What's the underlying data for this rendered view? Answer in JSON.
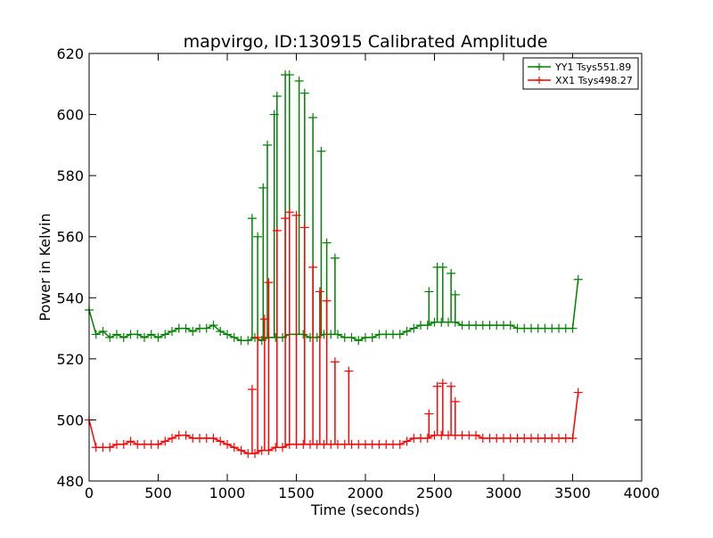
{
  "chart_data": {
    "type": "line",
    "title": "mapvirgo, ID:130915 Calibrated Amplitude",
    "xlabel": "Time (seconds)",
    "ylabel": "Power in Kelvin",
    "xlim": [
      0,
      4000
    ],
    "ylim": [
      480,
      620
    ],
    "xticks": [
      0,
      500,
      1000,
      1500,
      2000,
      2500,
      3000,
      3500,
      4000
    ],
    "yticks": [
      480,
      500,
      520,
      540,
      560,
      580,
      600,
      620
    ],
    "grid": false,
    "legend_position": "top-right",
    "series": [
      {
        "name": "YY1 Tsys551.89",
        "color": "#008000",
        "marker": "+",
        "x": [
          0,
          50,
          100,
          150,
          200,
          250,
          300,
          350,
          400,
          450,
          500,
          550,
          600,
          650,
          700,
          750,
          800,
          850,
          900,
          950,
          1000,
          1050,
          1100,
          1150,
          1200,
          1250,
          1300,
          1350,
          1400,
          1450,
          1500,
          1550,
          1600,
          1650,
          1700,
          1750,
          1800,
          1850,
          1900,
          1950,
          2000,
          2050,
          2100,
          2150,
          2200,
          2250,
          2300,
          2350,
          2400,
          2450,
          2500,
          2550,
          2600,
          2650,
          2700,
          2750,
          2800,
          2850,
          2900,
          2950,
          3000,
          3050,
          3100,
          3150,
          3200,
          3250,
          3300,
          3350,
          3400,
          3450,
          3500,
          3540
        ],
        "y": [
          536,
          528,
          529,
          527,
          528,
          527,
          528,
          528,
          527,
          528,
          527,
          528,
          529,
          530,
          530,
          529,
          530,
          530,
          531,
          529,
          528,
          527,
          526,
          526,
          527,
          526,
          527,
          527,
          527,
          528,
          528,
          528,
          527,
          527,
          528,
          528,
          528,
          527,
          527,
          526,
          527,
          527,
          528,
          528,
          528,
          528,
          529,
          530,
          531,
          531,
          532,
          532,
          532,
          532,
          531,
          531,
          531,
          531,
          531,
          531,
          531,
          531,
          530,
          530,
          530,
          530,
          530,
          530,
          530,
          530,
          530,
          546
        ],
        "spikes": [
          [
            1180,
            566
          ],
          [
            1220,
            560
          ],
          [
            1260,
            576
          ],
          [
            1290,
            590
          ],
          [
            1340,
            600
          ],
          [
            1360,
            606
          ],
          [
            1420,
            613
          ],
          [
            1450,
            613
          ],
          [
            1520,
            611
          ],
          [
            1560,
            607
          ],
          [
            1620,
            599
          ],
          [
            1680,
            588
          ],
          [
            1720,
            558
          ],
          [
            1780,
            553
          ],
          [
            2460,
            542
          ],
          [
            2520,
            550
          ],
          [
            2560,
            550
          ],
          [
            2620,
            548
          ],
          [
            2650,
            541
          ]
        ]
      },
      {
        "name": "XX1 Tsys498.27",
        "color": "#ff0000",
        "marker": "+",
        "x": [
          0,
          50,
          100,
          150,
          200,
          250,
          300,
          350,
          400,
          450,
          500,
          550,
          600,
          650,
          700,
          750,
          800,
          850,
          900,
          950,
          1000,
          1050,
          1100,
          1150,
          1200,
          1250,
          1300,
          1350,
          1400,
          1450,
          1500,
          1550,
          1600,
          1650,
          1700,
          1750,
          1800,
          1850,
          1900,
          1950,
          2000,
          2050,
          2100,
          2150,
          2200,
          2250,
          2300,
          2350,
          2400,
          2450,
          2500,
          2550,
          2600,
          2650,
          2700,
          2750,
          2800,
          2850,
          2900,
          2950,
          3000,
          3050,
          3100,
          3150,
          3200,
          3250,
          3300,
          3350,
          3400,
          3450,
          3500,
          3540
        ],
        "y": [
          500,
          491,
          491,
          491,
          492,
          492,
          493,
          492,
          492,
          492,
          492,
          493,
          494,
          495,
          495,
          494,
          494,
          494,
          494,
          493,
          492,
          491,
          490,
          489,
          489,
          490,
          490,
          491,
          491,
          492,
          492,
          492,
          492,
          492,
          492,
          492,
          492,
          492,
          492,
          492,
          492,
          492,
          492,
          492,
          492,
          492,
          493,
          494,
          494,
          494,
          495,
          495,
          495,
          495,
          495,
          495,
          495,
          494,
          494,
          494,
          494,
          494,
          494,
          494,
          494,
          494,
          494,
          494,
          494,
          494,
          494,
          509
        ],
        "spikes": [
          [
            1180,
            510
          ],
          [
            1220,
            527
          ],
          [
            1270,
            533
          ],
          [
            1300,
            545
          ],
          [
            1360,
            562
          ],
          [
            1420,
            566
          ],
          [
            1450,
            568
          ],
          [
            1500,
            567
          ],
          [
            1560,
            563
          ],
          [
            1620,
            550
          ],
          [
            1670,
            542
          ],
          [
            1720,
            539
          ],
          [
            1780,
            519
          ],
          [
            1880,
            516
          ],
          [
            2460,
            502
          ],
          [
            2520,
            511
          ],
          [
            2560,
            512
          ],
          [
            2620,
            511
          ],
          [
            2650,
            506
          ]
        ]
      }
    ]
  }
}
